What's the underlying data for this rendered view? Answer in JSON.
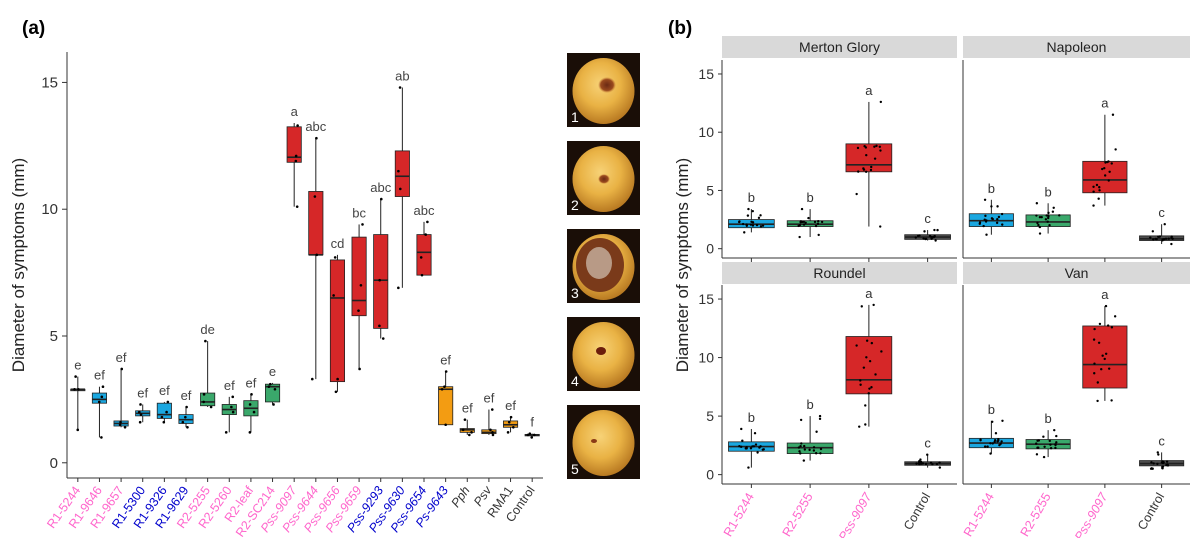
{
  "chart_data": [
    {
      "panel_label": "(a)",
      "type": "box",
      "ylabel": "Diameter of symptoms (mm)",
      "ylim": [
        -0.6,
        16.2
      ],
      "yticks": [
        0,
        5,
        10,
        15
      ],
      "categories": [
        {
          "name": "R1-5244",
          "color": "#ff66cc",
          "italic": false,
          "box_color": "#4d4d4d",
          "min": 1.3,
          "q1": 2.9,
          "median": 2.9,
          "q3": 2.9,
          "max": 3.4,
          "points": [
            1.3,
            2.9,
            2.9,
            3.4
          ],
          "letter": "e"
        },
        {
          "name": "R1-9646",
          "color": "#ff66cc",
          "italic": false,
          "box_color": "#1aa7e0",
          "min": 1.0,
          "q1": 2.35,
          "median": 2.5,
          "q3": 2.75,
          "max": 3.0,
          "points": [
            1.0,
            2.4,
            2.6,
            3.0
          ],
          "letter": "ef"
        },
        {
          "name": "R1-9657",
          "color": "#ff66cc",
          "italic": false,
          "box_color": "#1aa7e0",
          "min": 1.4,
          "q1": 1.45,
          "median": 1.55,
          "q3": 1.65,
          "max": 3.7,
          "points": [
            1.4,
            1.5,
            1.6,
            3.7
          ],
          "letter": "ef"
        },
        {
          "name": "R1-5300",
          "color": "#0000cc",
          "italic": false,
          "box_color": "#1aa7e0",
          "min": 1.6,
          "q1": 1.85,
          "median": 1.95,
          "q3": 2.05,
          "max": 2.3,
          "points": [
            1.6,
            1.9,
            2.0,
            2.3
          ],
          "letter": "ef"
        },
        {
          "name": "R1-9326",
          "color": "#0000cc",
          "italic": false,
          "box_color": "#1aa7e0",
          "min": 1.6,
          "q1": 1.75,
          "median": 1.9,
          "q3": 2.35,
          "max": 2.4,
          "points": [
            1.6,
            1.8,
            2.0,
            2.4
          ],
          "letter": "ef"
        },
        {
          "name": "R1-9629",
          "color": "#0000cc",
          "italic": false,
          "box_color": "#1aa7e0",
          "min": 1.4,
          "q1": 1.55,
          "median": 1.7,
          "q3": 1.9,
          "max": 2.2,
          "points": [
            1.4,
            1.6,
            1.8,
            2.2
          ],
          "letter": "ef"
        },
        {
          "name": "R2-5255",
          "color": "#ff66cc",
          "italic": false,
          "box_color": "#3aa86b",
          "min": 2.2,
          "q1": 2.25,
          "median": 2.4,
          "q3": 2.75,
          "max": 4.8,
          "points": [
            2.2,
            2.4,
            2.7,
            4.8
          ],
          "letter": "de"
        },
        {
          "name": "R2-5260",
          "color": "#ff66cc",
          "italic": false,
          "box_color": "#3aa86b",
          "min": 1.2,
          "q1": 1.9,
          "median": 2.1,
          "q3": 2.3,
          "max": 2.6,
          "points": [
            1.2,
            2.0,
            2.2,
            2.6
          ],
          "letter": "ef"
        },
        {
          "name": "R2-leaf",
          "color": "#ff66cc",
          "italic": false,
          "box_color": "#3aa86b",
          "min": 1.2,
          "q1": 1.85,
          "median": 2.15,
          "q3": 2.45,
          "max": 2.7,
          "points": [
            1.2,
            2.0,
            2.3,
            2.7
          ],
          "letter": "ef"
        },
        {
          "name": "R2-SC214",
          "color": "#ff66cc",
          "italic": false,
          "box_color": "#3aa86b",
          "min": 2.3,
          "q1": 2.4,
          "median": 3.0,
          "q3": 3.1,
          "max": 3.15,
          "points": [
            2.3,
            2.9,
            3.0,
            3.1
          ],
          "letter": "e"
        },
        {
          "name": "Pss-9097",
          "color": "#ff66cc",
          "italic": true,
          "box_color": "#d62728",
          "min": 10.1,
          "q1": 11.85,
          "median": 12.05,
          "q3": 13.25,
          "max": 13.4,
          "points": [
            10.1,
            11.9,
            12.1,
            13.3
          ],
          "letter": "a"
        },
        {
          "name": "Pss-9644",
          "color": "#ff66cc",
          "italic": true,
          "box_color": "#d62728",
          "min": 3.3,
          "q1": 8.2,
          "median": 8.2,
          "q3": 10.7,
          "max": 12.8,
          "points": [
            3.3,
            8.2,
            10.5,
            12.8
          ],
          "letter": "abc"
        },
        {
          "name": "Pss-9656",
          "color": "#ff66cc",
          "italic": true,
          "box_color": "#d62728",
          "min": 2.8,
          "q1": 3.2,
          "median": 6.5,
          "q3": 8.0,
          "max": 8.2,
          "points": [
            2.8,
            3.3,
            6.6,
            8.1
          ],
          "letter": "cd"
        },
        {
          "name": "Pss-9659",
          "color": "#ff66cc",
          "italic": true,
          "box_color": "#d62728",
          "min": 3.7,
          "q1": 5.8,
          "median": 6.4,
          "q3": 8.9,
          "max": 9.4,
          "points": [
            3.7,
            6.0,
            7.0,
            9.4
          ],
          "letter": "bc"
        },
        {
          "name": "Pss-9293",
          "color": "#0000cc",
          "italic": true,
          "box_color": "#d62728",
          "min": 4.9,
          "q1": 5.3,
          "median": 7.2,
          "q3": 9.0,
          "max": 10.4,
          "points": [
            4.9,
            5.4,
            7.2,
            10.4
          ],
          "letter": "abc"
        },
        {
          "name": "Pss-9630",
          "color": "#0000cc",
          "italic": true,
          "box_color": "#d62728",
          "min": 6.9,
          "q1": 10.5,
          "median": 11.3,
          "q3": 12.3,
          "max": 14.8,
          "points": [
            6.9,
            10.8,
            11.5,
            14.8
          ],
          "letter": "ab"
        },
        {
          "name": "Pss-9654",
          "color": "#0000cc",
          "italic": true,
          "box_color": "#d62728",
          "min": 7.4,
          "q1": 7.4,
          "median": 8.3,
          "q3": 9.0,
          "max": 9.5,
          "points": [
            7.4,
            8.1,
            9.0,
            9.5
          ],
          "letter": "abc"
        },
        {
          "name": "Ps-9643",
          "color": "#0000cc",
          "italic": true,
          "box_color": "#f39c12",
          "min": 1.5,
          "q1": 1.5,
          "median": 2.9,
          "q3": 3.0,
          "max": 3.6,
          "points": [
            1.5,
            2.9,
            3.0,
            3.6
          ],
          "letter": "ef"
        },
        {
          "name": "Pph",
          "color": "#333333",
          "italic": true,
          "box_color": "#f39c12",
          "min": 1.1,
          "q1": 1.2,
          "median": 1.3,
          "q3": 1.35,
          "max": 1.7,
          "points": [
            1.1,
            1.2,
            1.3,
            1.7
          ],
          "letter": "ef"
        },
        {
          "name": "Psv",
          "color": "#333333",
          "italic": true,
          "box_color": "#f39c12",
          "min": 1.1,
          "q1": 1.15,
          "median": 1.2,
          "q3": 1.3,
          "max": 2.1,
          "points": [
            1.1,
            1.2,
            1.3,
            2.1
          ],
          "letter": "ef"
        },
        {
          "name": "RMA1",
          "color": "#333333",
          "italic": false,
          "box_color": "#f39c12",
          "min": 1.2,
          "q1": 1.4,
          "median": 1.5,
          "q3": 1.65,
          "max": 1.8,
          "points": [
            1.2,
            1.4,
            1.6,
            1.8
          ],
          "letter": "ef"
        },
        {
          "name": "Control",
          "color": "#333333",
          "italic": false,
          "box_color": "#4d4d4d",
          "min": 1.0,
          "q1": 1.08,
          "median": 1.1,
          "q3": 1.12,
          "max": 1.15,
          "points": [
            1.0,
            1.1,
            1.1,
            1.15
          ],
          "letter": "f"
        }
      ]
    },
    {
      "panel_label": "(b)",
      "type": "box",
      "ylabel": "Diameter of symptoms (mm)",
      "ylim": [
        -0.8,
        16.2
      ],
      "yticks": [
        0,
        5,
        10,
        15
      ],
      "categories": [
        {
          "name": "R1-5244",
          "color": "#ff66cc",
          "italic": false,
          "box_color": "#1aa7e0"
        },
        {
          "name": "R2-5255",
          "color": "#ff66cc",
          "italic": false,
          "box_color": "#3aa86b"
        },
        {
          "name": "Pss-9097",
          "color": "#ff66cc",
          "italic": true,
          "box_color": "#d62728"
        },
        {
          "name": "Control",
          "color": "#333333",
          "italic": false,
          "box_color": "#4d4d4d"
        }
      ],
      "facets": [
        {
          "title": "Merton Glory",
          "boxes": [
            {
              "min": 1.4,
              "q1": 1.8,
              "median": 2.1,
              "q3": 2.5,
              "max": 3.4,
              "letter": "b"
            },
            {
              "min": 1.0,
              "q1": 1.9,
              "median": 2.1,
              "q3": 2.4,
              "max": 3.4,
              "letter": "b"
            },
            {
              "min": 1.9,
              "q1": 6.6,
              "median": 7.2,
              "q3": 9.0,
              "max": 12.6,
              "letter": "a"
            },
            {
              "min": 0.7,
              "q1": 0.8,
              "median": 1.0,
              "q3": 1.2,
              "max": 1.6,
              "letter": "c"
            }
          ]
        },
        {
          "title": "Napoleon",
          "boxes": [
            {
              "min": 1.2,
              "q1": 1.9,
              "median": 2.4,
              "q3": 3.0,
              "max": 4.2,
              "letter": "b"
            },
            {
              "min": 1.3,
              "q1": 1.9,
              "median": 2.3,
              "q3": 2.9,
              "max": 3.9,
              "letter": "b"
            },
            {
              "min": 3.7,
              "q1": 4.8,
              "median": 5.9,
              "q3": 7.5,
              "max": 11.5,
              "letter": "a"
            },
            {
              "min": 0.4,
              "q1": 0.7,
              "median": 0.85,
              "q3": 1.1,
              "max": 2.1,
              "letter": "c"
            }
          ]
        },
        {
          "title": "Roundel",
          "boxes": [
            {
              "min": 0.6,
              "q1": 2.0,
              "median": 2.4,
              "q3": 2.8,
              "max": 3.9,
              "letter": "b"
            },
            {
              "min": 1.2,
              "q1": 1.8,
              "median": 2.3,
              "q3": 2.7,
              "max": 5.0,
              "letter": "b"
            },
            {
              "min": 4.1,
              "q1": 6.9,
              "median": 8.1,
              "q3": 11.8,
              "max": 14.5,
              "letter": "a"
            },
            {
              "min": 0.6,
              "q1": 0.8,
              "median": 0.95,
              "q3": 1.1,
              "max": 1.7,
              "letter": "c"
            }
          ]
        },
        {
          "title": "Van",
          "boxes": [
            {
              "min": 1.8,
              "q1": 2.3,
              "median": 2.7,
              "q3": 3.1,
              "max": 4.6,
              "letter": "b"
            },
            {
              "min": 1.5,
              "q1": 2.2,
              "median": 2.6,
              "q3": 3.0,
              "max": 3.8,
              "letter": "b"
            },
            {
              "min": 6.3,
              "q1": 7.4,
              "median": 9.4,
              "q3": 12.7,
              "max": 14.4,
              "letter": "a"
            },
            {
              "min": 0.5,
              "q1": 0.75,
              "median": 0.95,
              "q3": 1.2,
              "max": 1.9,
              "letter": "c"
            }
          ]
        }
      ]
    }
  ],
  "photos": [
    {
      "label": "1",
      "rot": "rot-center"
    },
    {
      "label": "2",
      "rot": "rot-small"
    },
    {
      "label": "3",
      "rot": "rot-large"
    },
    {
      "label": "4",
      "rot": "rot-spot"
    },
    {
      "label": "5",
      "rot": "rot-none"
    }
  ]
}
